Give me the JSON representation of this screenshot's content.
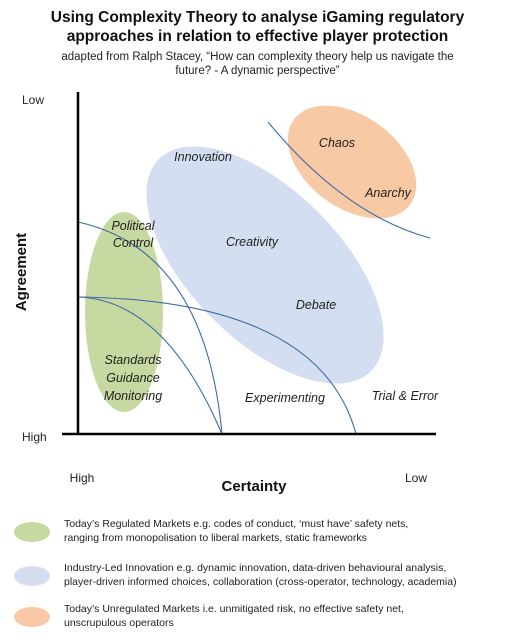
{
  "header": {
    "title_line1": "Using Complexity Theory to analyse iGaming regulatory",
    "title_line2": "approaches in relation to effective player protection",
    "subtitle_line1": "adapted from Ralph Stacey, “How can complexity theory help us navigate the",
    "subtitle_line2": "future? - A dynamic perspective”"
  },
  "axes": {
    "y_label": "Agreement",
    "y_top": "Low",
    "y_bottom": "High",
    "x_label": "Certainty",
    "x_left": "High",
    "x_right": "Low"
  },
  "zones": {
    "chaos": "Chaos",
    "anarchy": "Anarchy",
    "innovation": "Innovation",
    "creativity": "Creativity",
    "debate": "Debate",
    "political_line1": "Political",
    "political_line2": "Control",
    "standards": "Standards",
    "guidance": "Guidance",
    "monitoring": "Monitoring",
    "experimenting": "Experimenting",
    "trial_error": "Trial & Error"
  },
  "colors": {
    "green": "#c6d9a0",
    "blue": "#d3dff0",
    "orange": "#f7c9a4",
    "curve": "#3f6aa8",
    "axis": "#000000"
  },
  "legend": [
    {
      "color": "#c6d9a0",
      "line1": "Today’s Regulated Markets e.g. codes of conduct, ‘must have’ safety nets,",
      "line2": "ranging from monopolisation to liberal markets, static frameworks"
    },
    {
      "color": "#d3dff0",
      "line1": "Industry-Led Innovation e.g. dynamic innovation, data-driven behavioural analysis,",
      "line2": "player-driven informed choices, collaboration (cross-operator, technology, academia)"
    },
    {
      "color": "#f7c9a4",
      "line1": "Today’s Unregulated Markets i.e. unmitigated risk, no effective safety net,",
      "line2": "unscrupulous operators"
    }
  ]
}
